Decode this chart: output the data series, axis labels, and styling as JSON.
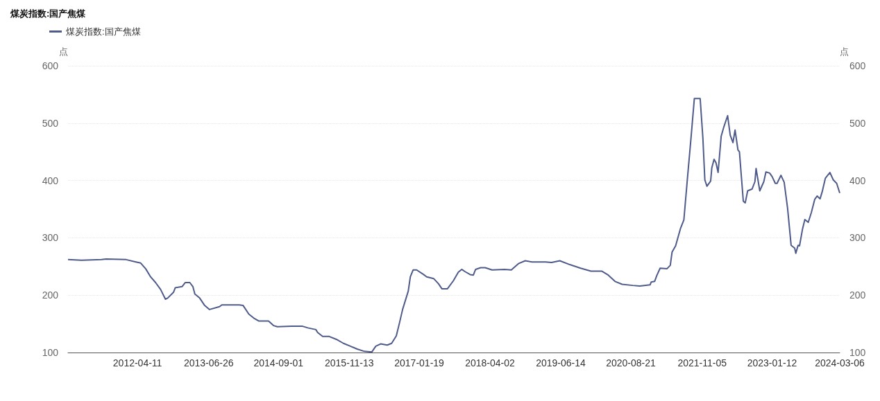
{
  "chart_data": {
    "type": "line",
    "title": "煤炭指数:国产焦煤",
    "ylabel": "点",
    "y2label": "点",
    "x": [
      "2011-02-06",
      "2011-05-01",
      "2011-09-01",
      "2011-10-01",
      "2012-02-01",
      "2012-04-01",
      "2012-05-01",
      "2012-06-01",
      "2012-07-01",
      "2012-08-01",
      "2012-09-01",
      "2012-10-01",
      "2012-10-15",
      "2012-11-20",
      "2012-12-01",
      "2013-01-12",
      "2013-02-01",
      "2013-03-01",
      "2013-03-20",
      "2013-04-01",
      "2013-05-01",
      "2013-06-01",
      "2013-07-01",
      "2013-09-01",
      "2013-09-15",
      "2014-01-01",
      "2014-01-25",
      "2014-03-01",
      "2014-04-01",
      "2014-05-01",
      "2014-07-01",
      "2014-08-01",
      "2014-08-25",
      "2014-11-20",
      "2015-01-25",
      "2015-03-01",
      "2015-04-20",
      "2015-05-01",
      "2015-06-01",
      "2015-07-12",
      "2015-08-25",
      "2015-10-08",
      "2015-11-20",
      "2016-01-01",
      "2016-02-15",
      "2016-04-01",
      "2016-04-25",
      "2016-05-25",
      "2016-07-05",
      "2016-08-01",
      "2016-08-30",
      "2016-09-20",
      "2016-10-08",
      "2016-11-12",
      "2016-11-25",
      "2016-12-12",
      "2017-01-03",
      "2017-02-15",
      "2017-03-06",
      "2017-04-18",
      "2017-05-18",
      "2017-06-09",
      "2017-07-12",
      "2017-08-18",
      "2017-09-18",
      "2017-10-09",
      "2017-10-30",
      "2017-11-30",
      "2017-12-20",
      "2018-01-03",
      "2018-02-03",
      "2018-03-03",
      "2018-04-15",
      "2018-07-01",
      "2018-08-12",
      "2018-09-25",
      "2018-11-06",
      "2018-12-18",
      "2019-03-12",
      "2019-04-18",
      "2019-06-08",
      "2019-08-12",
      "2019-10-15",
      "2019-12-18",
      "2020-02-22",
      "2020-04-03",
      "2020-05-15",
      "2020-06-28",
      "2020-09-02",
      "2020-10-15",
      "2020-12-18",
      "2020-12-25",
      "2021-01-15",
      "2021-01-28",
      "2021-02-18",
      "2021-04-01",
      "2021-04-22",
      "2021-05-03",
      "2021-05-25",
      "2021-06-12",
      "2021-06-25",
      "2021-07-15",
      "2021-08-06",
      "2021-08-28",
      "2021-09-18",
      "2021-10-24",
      "2021-11-10",
      "2021-11-22",
      "2021-12-05",
      "2021-12-28",
      "2022-01-04",
      "2022-01-18",
      "2022-01-30",
      "2022-02-12",
      "2022-03-03",
      "2022-03-18",
      "2022-04-12",
      "2022-04-28",
      "2022-05-15",
      "2022-05-28",
      "2022-06-15",
      "2022-06-24",
      "2022-07-18",
      "2022-07-30",
      "2022-08-14",
      "2022-09-10",
      "2022-09-28",
      "2022-10-05",
      "2022-10-28",
      "2022-11-22",
      "2022-12-05",
      "2022-12-28",
      "2023-01-12",
      "2023-02-01",
      "2023-02-12",
      "2023-03-08",
      "2023-03-28",
      "2023-04-18",
      "2023-05-10",
      "2023-06-01",
      "2023-06-08",
      "2023-06-22",
      "2023-07-01",
      "2023-07-20",
      "2023-08-03",
      "2023-08-24",
      "2023-09-12",
      "2023-10-03",
      "2023-10-18",
      "2023-11-05",
      "2023-11-18",
      "2023-12-08",
      "2024-01-05",
      "2024-01-26",
      "2024-02-16",
      "2024-03-06"
    ],
    "series": [
      {
        "name": "煤炭指数:国产焦煤",
        "color": "#4e5a8a",
        "values": [
          262,
          261,
          262,
          263,
          262,
          258,
          256,
          246,
          232,
          222,
          210,
          193,
          195,
          205,
          213,
          215,
          222,
          222,
          215,
          202,
          195,
          182,
          175,
          180,
          183,
          183,
          182,
          167,
          160,
          155,
          155,
          147,
          145,
          146,
          146,
          143,
          140,
          135,
          128,
          128,
          123,
          116,
          111,
          106,
          102,
          101,
          111,
          115,
          113,
          116,
          129,
          153,
          175,
          207,
          232,
          244,
          244,
          236,
          232,
          229,
          220,
          211,
          211,
          225,
          240,
          245,
          241,
          236,
          235,
          245,
          248,
          248,
          244,
          245,
          244,
          255,
          260,
          258,
          258,
          257,
          260,
          253,
          247,
          242,
          242,
          235,
          224,
          219,
          217,
          216,
          218,
          223,
          224,
          234,
          247,
          246,
          252,
          275,
          286,
          304,
          317,
          331,
          403,
          473,
          543,
          543,
          473,
          401,
          390,
          399,
          422,
          437,
          431,
          414,
          477,
          492,
          513,
          479,
          466,
          488,
          453,
          450,
          364,
          361,
          382,
          385,
          398,
          421,
          382,
          398,
          415,
          413,
          407,
          395,
          395,
          409,
          397,
          352,
          287,
          282,
          273,
          287,
          286,
          316,
          332,
          327,
          344,
          367,
          373,
          368,
          380,
          404,
          414,
          401,
          395,
          378
        ]
      }
    ],
    "xlim": [
      "2011-02-06",
      "2024-03-06"
    ],
    "xticks": [
      "2012-04-11",
      "2013-06-26",
      "2014-09-01",
      "2015-11-13",
      "2017-01-19",
      "2018-04-02",
      "2019-06-14",
      "2020-08-21",
      "2021-11-05",
      "2023-01-12",
      "2024-03-06"
    ],
    "ylim": [
      100,
      600
    ],
    "yticks": [
      100,
      200,
      300,
      400,
      500,
      600
    ],
    "y2lim": [
      100,
      600
    ],
    "y2ticks": [
      100,
      200,
      300,
      400,
      500,
      600
    ],
    "grid": "y",
    "legend": "top left",
    "marker": "none",
    "line_style": "solid"
  }
}
